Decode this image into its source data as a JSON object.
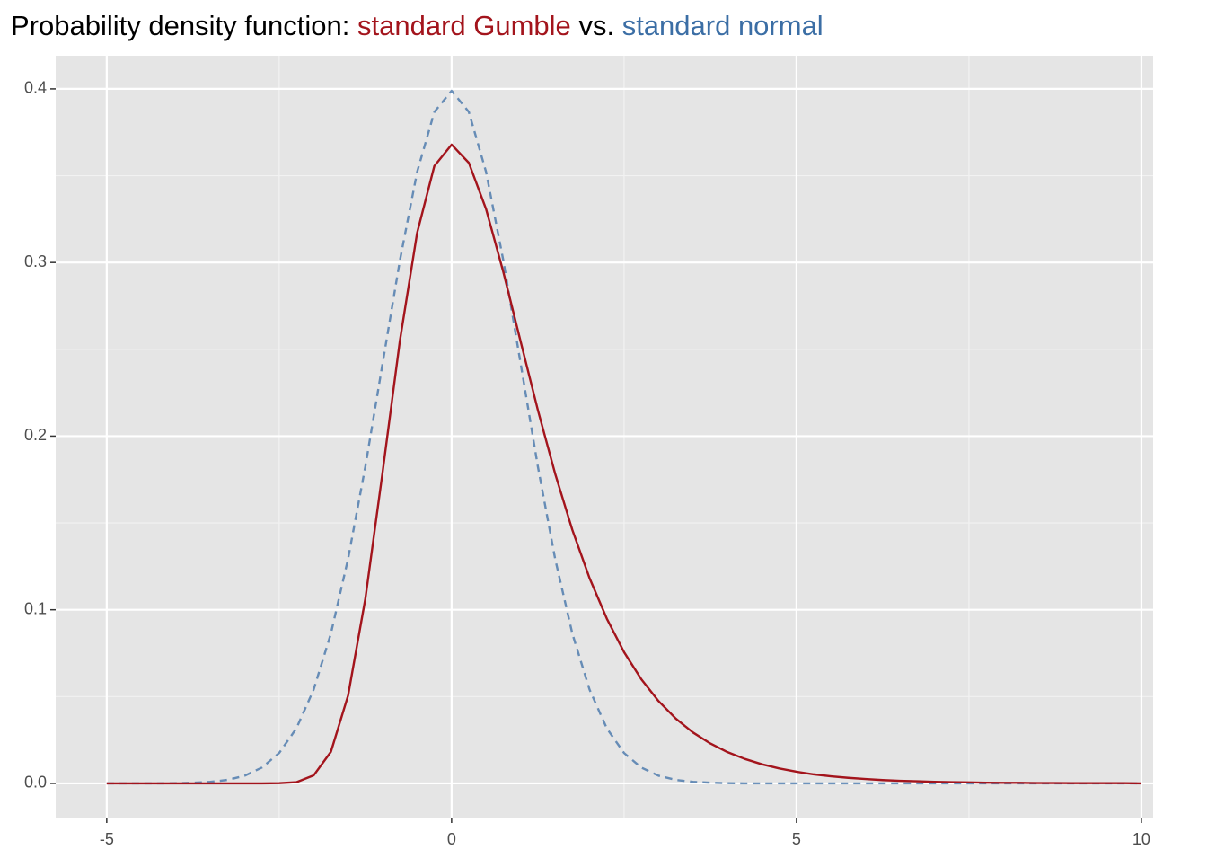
{
  "chart_data": {
    "type": "line",
    "title_parts": [
      "Probability density function:",
      "vs."
    ],
    "x": [
      -5,
      -4.75,
      -4.5,
      -4.25,
      -4,
      -3.75,
      -3.5,
      -3.25,
      -3,
      -2.75,
      -2.5,
      -2.25,
      -2,
      -1.75,
      -1.5,
      -1.25,
      -1,
      -0.75,
      -0.5,
      -0.25,
      0,
      0.25,
      0.5,
      0.75,
      1,
      1.25,
      1.5,
      1.75,
      2,
      2.25,
      2.5,
      2.75,
      3,
      3.25,
      3.5,
      3.75,
      4,
      4.25,
      4.5,
      4.75,
      5,
      5.25,
      5.5,
      5.75,
      6,
      6.25,
      6.5,
      6.75,
      7,
      7.25,
      7.5,
      7.75,
      8,
      8.25,
      8.5,
      8.75,
      9,
      9.25,
      9.5,
      9.75,
      10
    ],
    "series": [
      {
        "name": "standard Gumble",
        "color": "#a3141c",
        "dash": "solid",
        "opacity": 1,
        "values": [
          0,
          0,
          0,
          0,
          0,
          0,
          0,
          0,
          0,
          0,
          0.0001,
          0.0007,
          0.0046,
          0.0182,
          0.0507,
          0.1065,
          0.1794,
          0.2549,
          0.317,
          0.3556,
          0.3679,
          0.3574,
          0.3307,
          0.2945,
          0.2546,
          0.2151,
          0.1785,
          0.146,
          0.1182,
          0.0949,
          0.0756,
          0.06,
          0.0474,
          0.0373,
          0.0293,
          0.023,
          0.018,
          0.0141,
          0.011,
          0.0086,
          0.0067,
          0.0052,
          0.0041,
          0.0032,
          0.0025,
          0.0019,
          0.0015,
          0.0012,
          0.0009,
          0.0007,
          0.0006,
          0.0004,
          0.0003,
          0.0003,
          0.0002,
          0.0002,
          0.0001,
          0.0001,
          0.0001,
          0.0001,
          0
        ]
      },
      {
        "name": "standard normal",
        "color": "#3b6ea5",
        "dash": "dashed",
        "opacity": 0.75,
        "values": [
          0,
          0,
          0,
          0,
          0.0001,
          0.0004,
          0.0009,
          0.002,
          0.0044,
          0.0091,
          0.0175,
          0.0317,
          0.054,
          0.0863,
          0.1295,
          0.1826,
          0.242,
          0.3011,
          0.3521,
          0.3867,
          0.3989,
          0.3867,
          0.3521,
          0.3011,
          0.242,
          0.1826,
          0.1295,
          0.0863,
          0.054,
          0.0317,
          0.0175,
          0.0091,
          0.0044,
          0.002,
          0.0009,
          0.0004,
          0.0001,
          0,
          0,
          0,
          0,
          0,
          0,
          0,
          0,
          0,
          0,
          0,
          0,
          0,
          0,
          0,
          0,
          0,
          0,
          0,
          0,
          0,
          0,
          0,
          0
        ]
      }
    ],
    "xlim": [
      -5.74,
      10.17
    ],
    "ylim": [
      -0.0197,
      0.4191
    ],
    "xticks": [
      -5,
      0,
      5,
      10
    ],
    "yticks": [
      {
        "value": 0,
        "label": "0.0"
      },
      0.1,
      0.2,
      0.3,
      0.4
    ],
    "xminor": [
      -2.5,
      2.5,
      7.5
    ],
    "yminor": [
      0.05,
      0.15,
      0.25,
      0.35
    ],
    "grid": true
  }
}
